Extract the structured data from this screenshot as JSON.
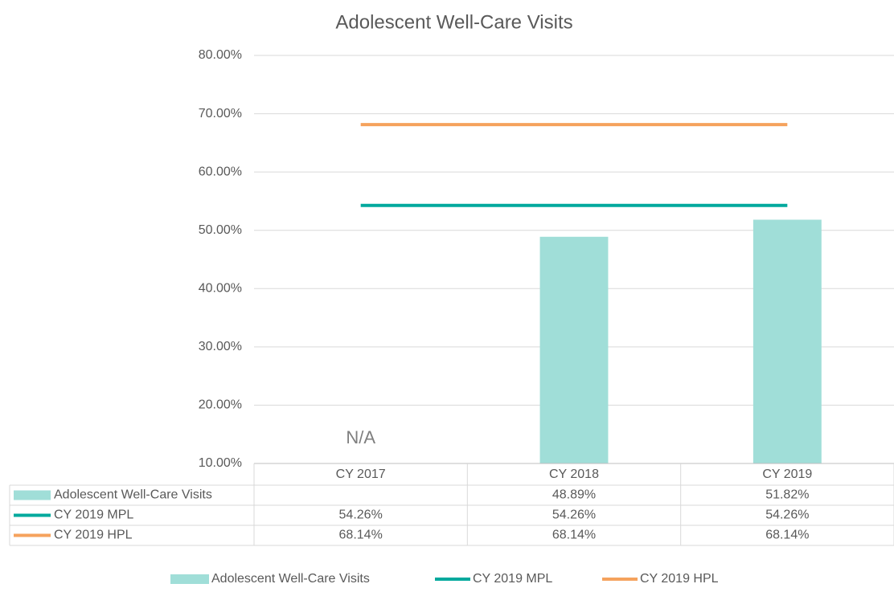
{
  "chart_data": {
    "type": "bar",
    "title": "Adolescent Well-Care Visits",
    "categories": [
      "CY 2017",
      "CY 2018",
      "CY 2019"
    ],
    "series": [
      {
        "name": "Adolescent Well-Care Visits",
        "type": "bar",
        "color": "#a0ded8",
        "values": [
          null,
          48.89,
          51.82
        ],
        "value_labels": [
          null,
          "48.89%",
          "51.82%"
        ]
      },
      {
        "name": "CY 2019 MPL",
        "type": "line",
        "color": "#00a99d",
        "values": [
          54.26,
          54.26,
          54.26
        ],
        "value_labels": [
          "54.26%",
          "54.26%",
          "54.26%"
        ]
      },
      {
        "name": "CY 2019 HPL",
        "type": "line",
        "color": "#f5a25d",
        "values": [
          68.14,
          68.14,
          68.14
        ],
        "value_labels": [
          "68.14%",
          "68.14%",
          "68.14%"
        ]
      }
    ],
    "annotations": [
      {
        "text": "N/A",
        "category": "CY 2017"
      }
    ],
    "ylim": [
      10,
      80
    ],
    "yticks": [
      {
        "value": 10,
        "label": "10.00%"
      },
      {
        "value": 20,
        "label": "20.00%"
      },
      {
        "value": 30,
        "label": "30.00%"
      },
      {
        "value": 40,
        "label": "40.00%"
      },
      {
        "value": 50,
        "label": "50.00%"
      },
      {
        "value": 60,
        "label": "60.00%"
      },
      {
        "value": 70,
        "label": "70.00%"
      },
      {
        "value": 80,
        "label": "80.00%"
      }
    ],
    "grid": true,
    "legend": "bottom",
    "data_table": true
  }
}
